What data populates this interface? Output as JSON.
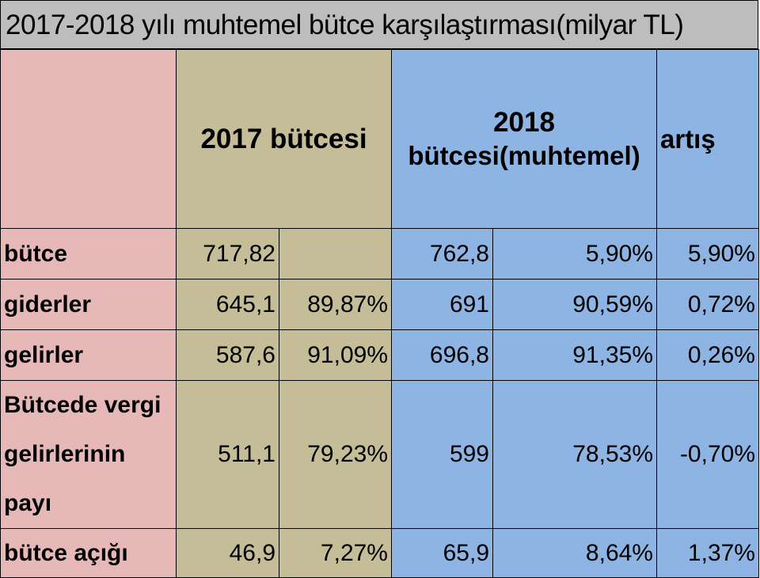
{
  "title": "2017-2018 yılı muhtemel bütce karşılaştırması(milyar TL)",
  "header": {
    "col_2017": "2017 bütcesi",
    "col_2018_line1": "2018",
    "col_2018_line2": "bütcesi(muhtemel)",
    "col_artis": "artış"
  },
  "rows": [
    {
      "label": "bütce",
      "v2017": "717,82",
      "p2017": "",
      "v2018": "762,8",
      "p2018": "5,90%",
      "artis": "5,90%"
    },
    {
      "label": "giderler",
      "v2017": "645,1",
      "p2017": "89,87%",
      "v2018": "691",
      "p2018": "90,59%",
      "artis": "0,72%"
    },
    {
      "label": "gelirler",
      "v2017": "587,6",
      "p2017": "91,09%",
      "v2018": "696,8",
      "p2018": "91,35%",
      "artis": "0,26%"
    },
    {
      "label": "Bütcede vergi gelirlerinin payı",
      "v2017": "511,1",
      "p2017": "79,23%",
      "v2018": "599",
      "p2018": "78,53%",
      "artis": "-0,70%"
    },
    {
      "label": "bütce açığı",
      "v2017": "46,9",
      "p2017": "7,27%",
      "v2018": "65,9",
      "p2018": "8,64%",
      "artis": "1,37%"
    }
  ]
}
